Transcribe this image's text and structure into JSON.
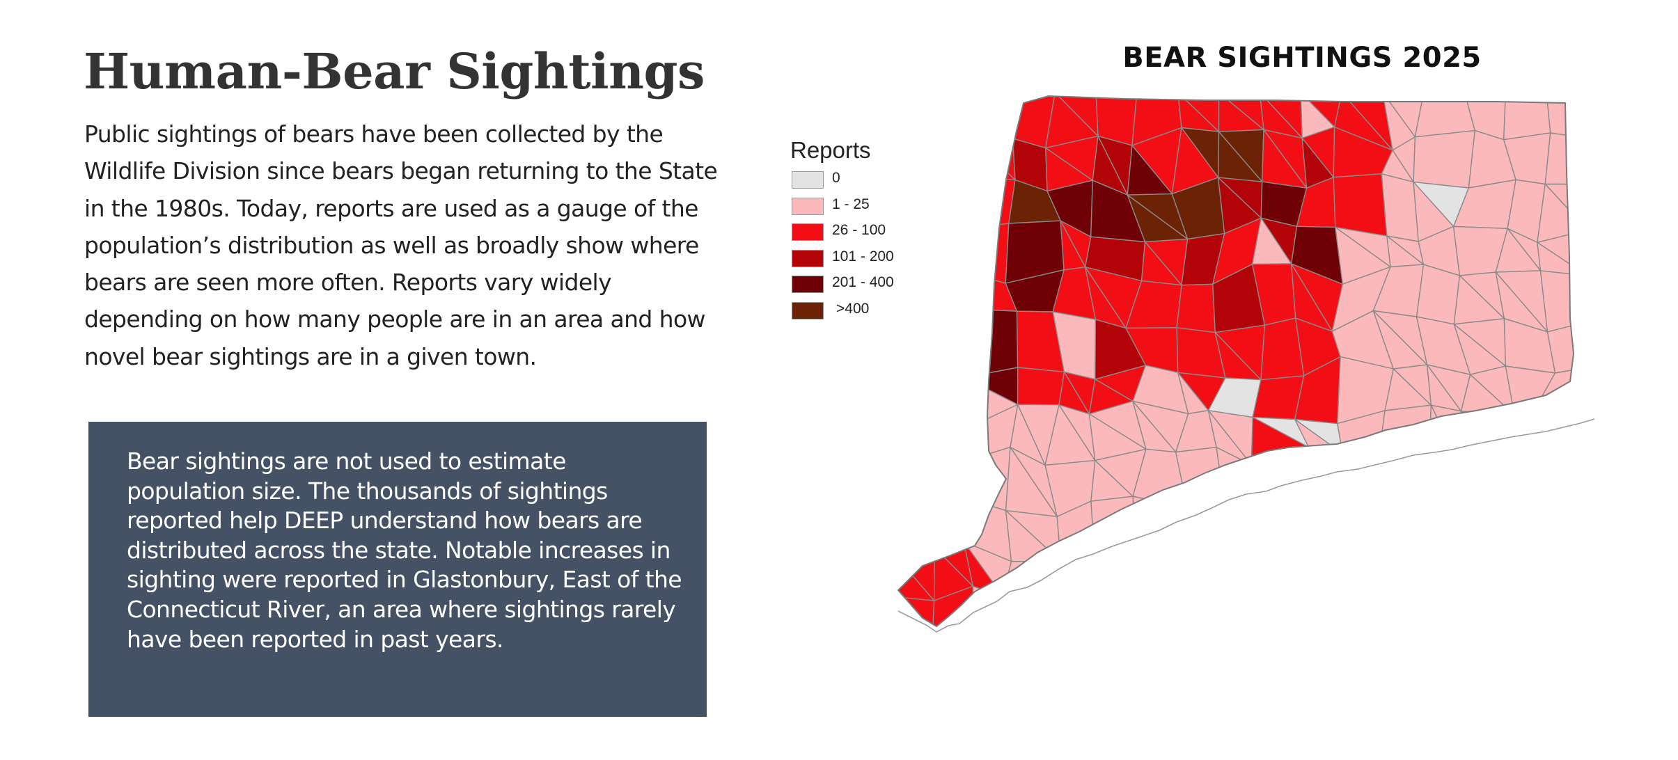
{
  "header": {
    "title": "Human-Bear Sightings",
    "intro": "Public sightings of bears have been collected by the Wildlife Division since bears began returning to the State in the 1980s. Today, reports are used as a gauge of the population’s distribution as well as broadly show where bears are seen more often. Reports vary widely depending on how many people are in an area and how novel bear sightings are in a given town."
  },
  "note": {
    "text": "Bear sightings are not used to estimate population size. The thousands of sightings reported help DEEP understand how bears are distributed across the state. Notable increases in sighting were reported in Glastonbury, East of the Connecticut River, an area where sightings rarely have been reported in past years."
  },
  "map": {
    "title": "BEAR SIGHTINGS 2025",
    "legend": {
      "title": "Reports",
      "classes": [
        {
          "label": "0",
          "color": "#e3e3e3"
        },
        {
          "label": "1 - 25",
          "color": "#fbb9bc"
        },
        {
          "label": "26 - 100",
          "color": "#f20e14"
        },
        {
          "label": "101 - 200",
          "color": "#b10308"
        },
        {
          "label": "201 - 400",
          "color": "#6f0005"
        },
        {
          "label": ">400",
          "color": "#6b2205"
        }
      ]
    }
  }
}
